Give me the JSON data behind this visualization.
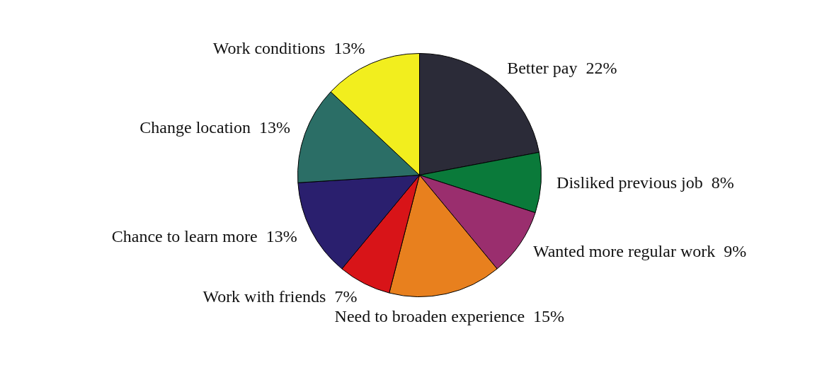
{
  "chart_data": {
    "type": "pie",
    "categories": [
      "Better pay",
      "Disliked previous job",
      "Wanted more regular work",
      "Need to broaden experience",
      "Work with friends",
      "Chance to learn more",
      "Change location",
      "Work conditions"
    ],
    "values": [
      22,
      8,
      9,
      15,
      7,
      13,
      13,
      13
    ],
    "value_labels": [
      "22%",
      "8%",
      "9%",
      "15%",
      "7%",
      "13%",
      "13%",
      "13%"
    ],
    "colors": [
      "#2b2b38",
      "#0a7a3a",
      "#9a2e6e",
      "#e8801e",
      "#d81418",
      "#2a1f6e",
      "#2b6e66",
      "#f2ee1e"
    ],
    "legend": false
  }
}
